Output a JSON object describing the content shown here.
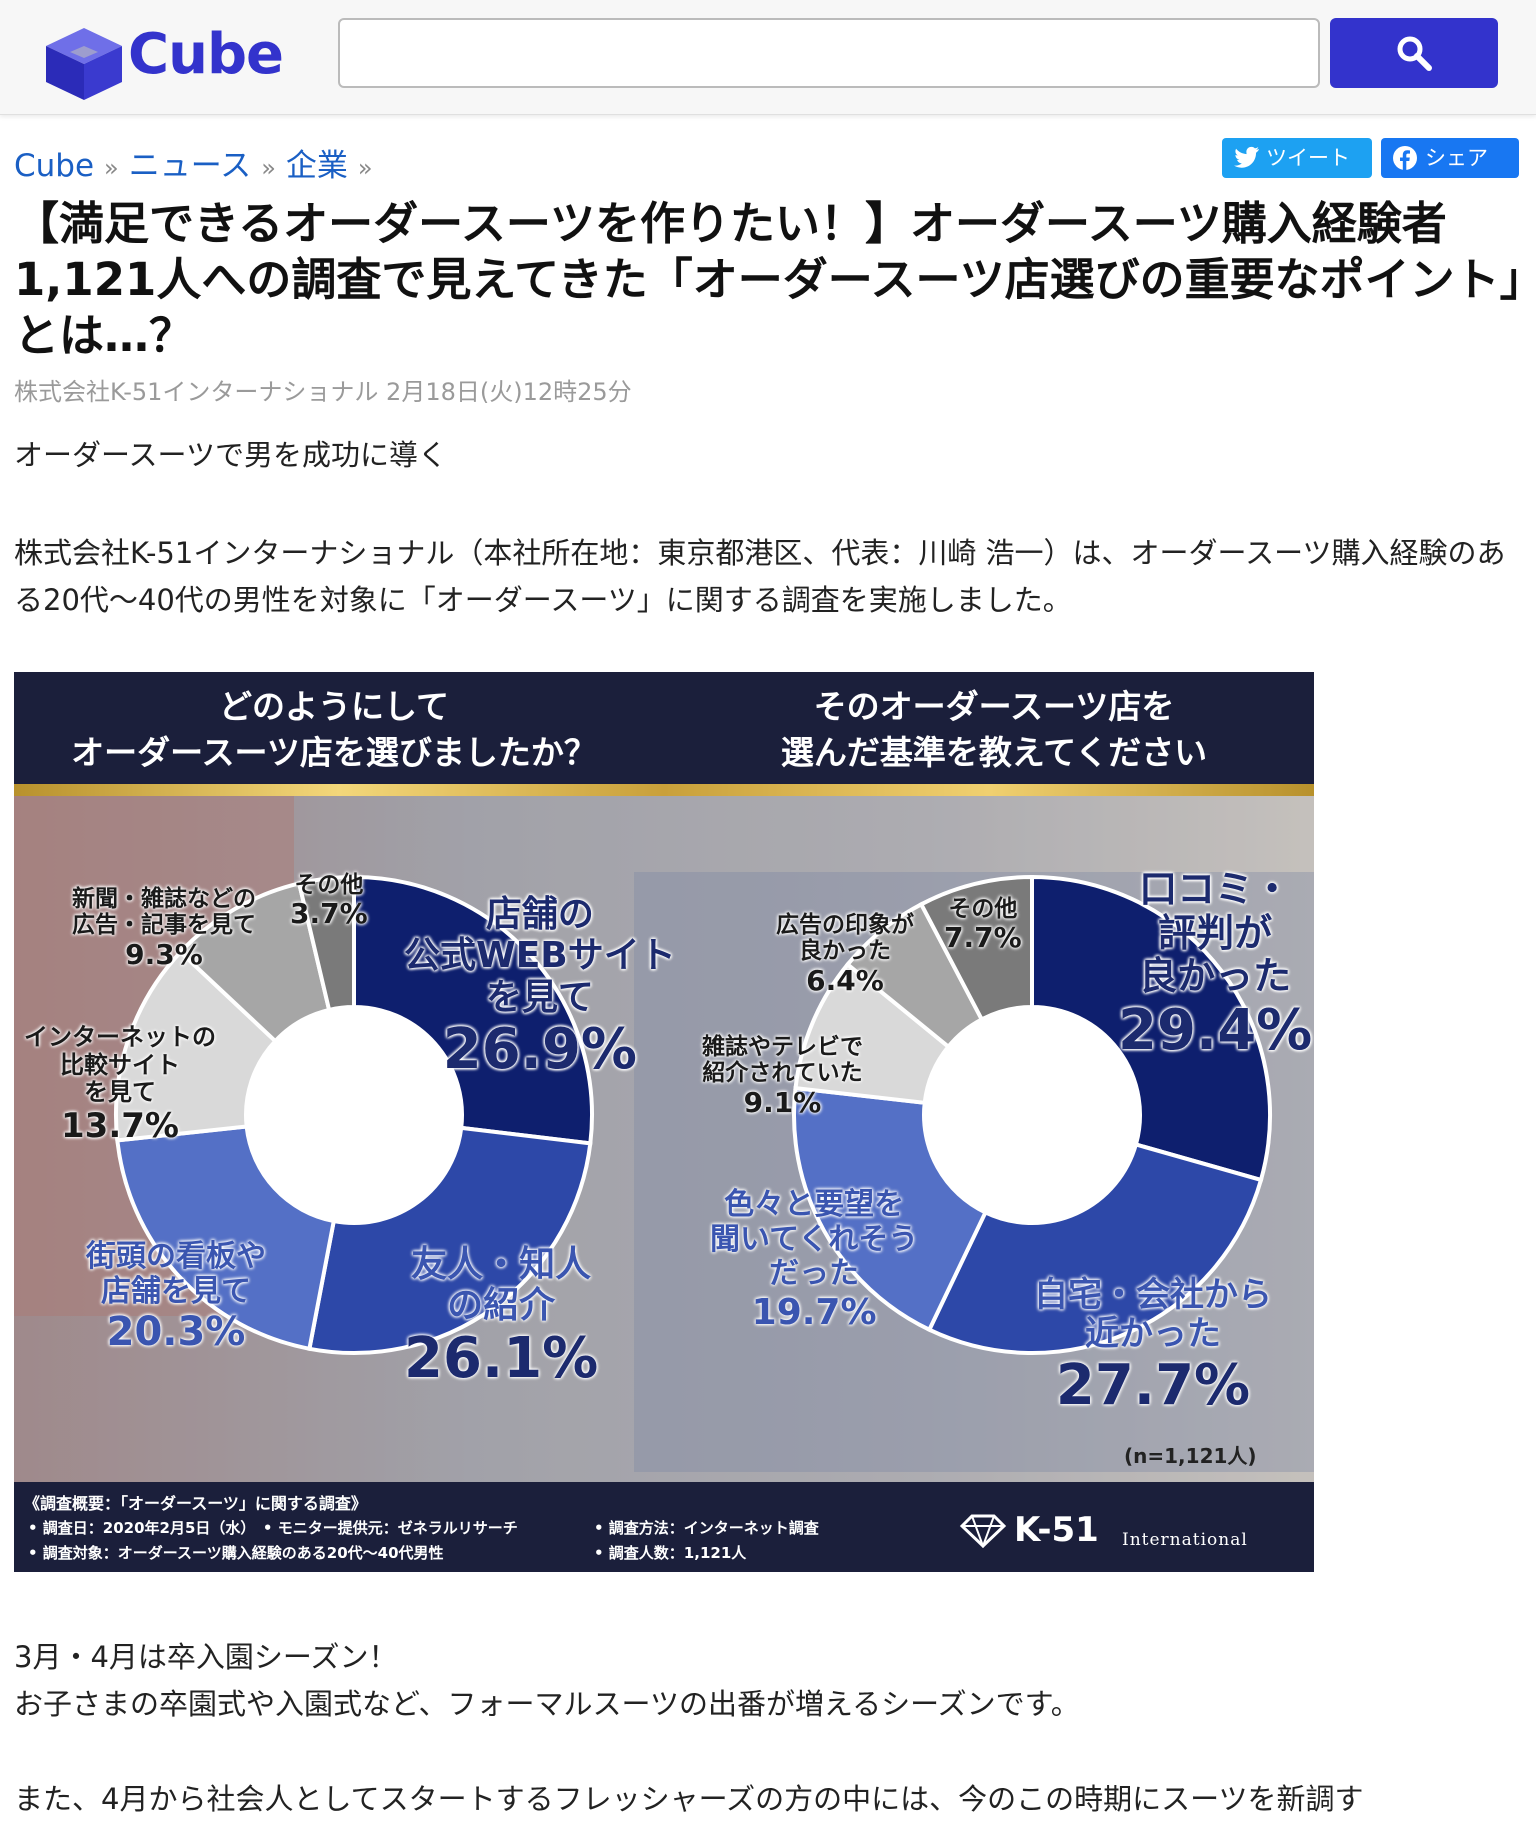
{
  "header": {
    "logo_text": "Cube",
    "search_placeholder": ""
  },
  "breadcrumb": {
    "items": [
      "Cube",
      "ニュース",
      "企業"
    ],
    "separator": "»"
  },
  "share": {
    "tweet_label": "ツイート",
    "facebook_label": "シェア"
  },
  "article": {
    "title": "【満足できるオーダースーツを作りたい！】オーダースーツ購入経験者1,121人への調査で見えてきた「オーダースーツ店選びの重要なポイント」とは…？",
    "meta": "株式会社K-51インターナショナル 2月18日(火)12時25分",
    "lead": "オーダースーツで男を成功に導く",
    "intro": "株式会社K-51インターナショナル（本社所在地：東京都港区、代表：川崎 浩一）は、オーダースーツ購入経験のある20代〜40代の男性を対象に「オーダースーツ」に関する調査を実施しました。",
    "para2_line1": "3月・4月は卒入園シーズン！",
    "para2_line2": "お子さまの卒園式や入園式など、フォーマルスーツの出番が増えるシーズンです。",
    "para3": "また、4月から社会人としてスタートするフレッシャーズの方の中には、今のこの時期にスーツを新調す"
  },
  "infographic": {
    "question_left": [
      "どのようにして",
      "オーダースーツ店を選びましたか？"
    ],
    "question_right": [
      "そのオーダースーツ店を",
      "選んだ基準を教えてください"
    ],
    "sample_note": "(n=1,121人)",
    "footer": {
      "title": "《調査概要：「オーダースーツ」に関する調査》",
      "line1": "• 調査日：2020年2月5日（水）　• モニター提供元：ゼネラルリサーチ",
      "line1b": "• 調査方法：インターネット調査",
      "line2": "• 調査対象：オーダースーツ購入経験のある20代〜40代男性",
      "line2b": "• 調査人数：1,121人",
      "brand": "K-51",
      "brand_sub": "International"
    },
    "colors": {
      "navy": "#0e1f6e",
      "blue": "#2d48a8",
      "mid_blue": "#5470c6",
      "light_gray": "#d9d9d9",
      "gray": "#a6a6a6",
      "dark_gray": "#7a7a7a"
    }
  },
  "chart_data": [
    {
      "type": "pie",
      "title": "どのようにしてオーダースーツ店を選びましたか？",
      "slices": [
        {
          "label": "店舗の公式WEBサイトを見て",
          "value": 26.9,
          "color": "#0e1f6e"
        },
        {
          "label": "友人・知人の紹介",
          "value": 26.1,
          "color": "#2d48a8"
        },
        {
          "label": "街頭の看板や店舗を見て",
          "value": 20.3,
          "color": "#5470c6"
        },
        {
          "label": "インターネットの比較サイトを見て",
          "value": 13.7,
          "color": "#d9d9d9"
        },
        {
          "label": "新聞・雑誌などの広告・記事を見て",
          "value": 9.3,
          "color": "#a6a6a6"
        },
        {
          "label": "その他",
          "value": 3.7,
          "color": "#7a7a7a"
        }
      ]
    },
    {
      "type": "pie",
      "title": "そのオーダースーツ店を選んだ基準を教えてください",
      "slices": [
        {
          "label": "口コミ・評判が良かった",
          "value": 29.4,
          "color": "#0e1f6e"
        },
        {
          "label": "自宅・会社から近かった",
          "value": 27.7,
          "color": "#2d48a8"
        },
        {
          "label": "色々と要望を聞いてくれそうだった",
          "value": 19.7,
          "color": "#5470c6"
        },
        {
          "label": "雑誌やテレビで紹介されていた",
          "value": 9.1,
          "color": "#d9d9d9"
        },
        {
          "label": "広告の印象が良かった",
          "value": 6.4,
          "color": "#a6a6a6"
        },
        {
          "label": "その他",
          "value": 7.7,
          "color": "#7a7a7a"
        }
      ]
    }
  ]
}
